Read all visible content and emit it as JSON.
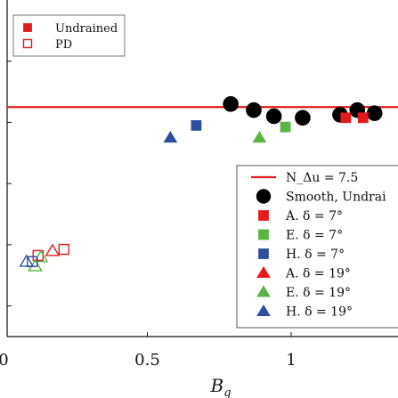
{
  "chart_data": {
    "type": "scatter",
    "xlabel": "B_q",
    "x_ticks": [
      "0",
      "0.5",
      "1"
    ],
    "xlim": [
      0,
      1.35
    ],
    "ylim": [
      0,
      11
    ],
    "grid": false,
    "reference_line": {
      "name": "N_Δu = 7.5",
      "y": 7.5,
      "color": "#e41a1c"
    },
    "colors": {
      "red": "#e41a1c",
      "green": "#5ab443",
      "blue": "#2e4f9e",
      "black": "#000000"
    },
    "legend_top": {
      "placement": "top-left",
      "entries": [
        {
          "label": "Undrained",
          "marker": "square",
          "filled": true,
          "color": "#e41a1c"
        },
        {
          "label": "PD",
          "marker": "square",
          "filled": false,
          "color": "#e41a1c"
        }
      ]
    },
    "legend_main": {
      "placement": "center-right",
      "entries": [
        {
          "label": "N_Δu = 7.5",
          "marker": "line",
          "color": "#e41a1c"
        },
        {
          "label": "Smooth, Undrai",
          "marker": "circle",
          "filled": true,
          "color": "#000000"
        },
        {
          "label": "A. δ = 7°",
          "marker": "square",
          "filled": true,
          "color": "#e41a1c"
        },
        {
          "label": "E. δ = 7°",
          "marker": "square",
          "filled": true,
          "color": "#5ab443"
        },
        {
          "label": "H. δ = 7°",
          "marker": "square",
          "filled": true,
          "color": "#2e4f9e"
        },
        {
          "label": "A. δ = 19°",
          "marker": "triangle",
          "filled": true,
          "color": "#e41a1c"
        },
        {
          "label": "E. δ = 19°",
          "marker": "triangle",
          "filled": true,
          "color": "#5ab443"
        },
        {
          "label": "H. δ = 19°",
          "marker": "triangle",
          "filled": true,
          "color": "#2e4f9e"
        }
      ]
    },
    "series": [
      {
        "name": "Smooth, Undrai",
        "marker": "circle",
        "filled": true,
        "color": "#000000",
        "points": [
          [
            0.79,
            7.6
          ],
          [
            0.87,
            7.4
          ],
          [
            0.94,
            7.2
          ],
          [
            1.04,
            7.15
          ],
          [
            1.17,
            7.25
          ],
          [
            1.23,
            7.4
          ],
          [
            1.29,
            7.3
          ]
        ]
      },
      {
        "name": "A. δ = 7°",
        "marker": "square",
        "filled": true,
        "color": "#e41a1c",
        "points": [
          [
            1.19,
            7.15
          ],
          [
            1.25,
            7.15
          ]
        ]
      },
      {
        "name": "E. δ = 7°",
        "marker": "square",
        "filled": true,
        "color": "#5ab443",
        "points": [
          [
            0.98,
            6.85
          ]
        ]
      },
      {
        "name": "H. δ = 7°",
        "marker": "square",
        "filled": true,
        "color": "#2e4f9e",
        "points": [
          [
            0.67,
            6.9
          ]
        ]
      },
      {
        "name": "E. δ = 19°",
        "marker": "triangle",
        "filled": true,
        "color": "#5ab443",
        "points": [
          [
            0.89,
            6.5
          ]
        ]
      },
      {
        "name": "H. δ = 19°",
        "marker": "triangle",
        "filled": true,
        "color": "#2e4f9e",
        "points": [
          [
            0.58,
            6.5
          ]
        ]
      },
      {
        "name": "PD",
        "marker": "square",
        "filled": false,
        "color": "#e41a1c",
        "points": [
          [
            0.21,
            2.85
          ],
          [
            0.12,
            2.65
          ]
        ]
      },
      {
        "name": "PD",
        "marker": "triangle",
        "filled": false,
        "color": "#e41a1c",
        "points": [
          [
            0.17,
            2.8
          ]
        ]
      },
      {
        "name": "PD",
        "marker": "triangle",
        "filled": false,
        "color": "#5ab443",
        "points": [
          [
            0.11,
            2.3
          ],
          [
            0.13,
            2.6
          ]
        ]
      },
      {
        "name": "PD",
        "marker": "triangle",
        "filled": false,
        "color": "#2e4f9e",
        "points": [
          [
            0.08,
            2.45
          ]
        ]
      },
      {
        "name": "PD",
        "marker": "square",
        "filled": false,
        "color": "#2e4f9e",
        "points": [
          [
            0.1,
            2.45
          ]
        ]
      }
    ]
  }
}
